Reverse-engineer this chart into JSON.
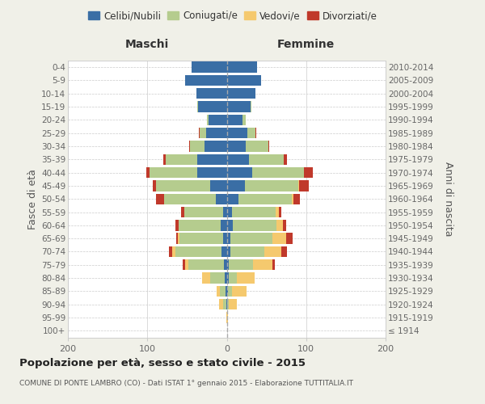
{
  "age_groups": [
    "100+",
    "95-99",
    "90-94",
    "85-89",
    "80-84",
    "75-79",
    "70-74",
    "65-69",
    "60-64",
    "55-59",
    "50-54",
    "45-49",
    "40-44",
    "35-39",
    "30-34",
    "25-29",
    "20-24",
    "15-19",
    "10-14",
    "5-9",
    "0-4"
  ],
  "birth_years": [
    "≤ 1914",
    "1915-1919",
    "1920-1924",
    "1925-1929",
    "1930-1934",
    "1935-1939",
    "1940-1944",
    "1945-1949",
    "1950-1954",
    "1955-1959",
    "1960-1964",
    "1965-1969",
    "1970-1974",
    "1975-1979",
    "1980-1984",
    "1985-1989",
    "1990-1994",
    "1995-1999",
    "2000-2004",
    "2005-2009",
    "2010-2014"
  ],
  "males_celibi": [
    0,
    0,
    1,
    2,
    3,
    4,
    7,
    5,
    8,
    5,
    14,
    21,
    37,
    37,
    28,
    26,
    23,
    36,
    38,
    52,
    44
  ],
  "males_coniugati": [
    0,
    0,
    4,
    7,
    18,
    44,
    58,
    55,
    53,
    48,
    65,
    68,
    60,
    40,
    18,
    8,
    2,
    1,
    0,
    0,
    0
  ],
  "males_vedovi": [
    0,
    1,
    5,
    4,
    10,
    4,
    4,
    2,
    0,
    0,
    0,
    0,
    0,
    0,
    0,
    0,
    0,
    0,
    0,
    0,
    0
  ],
  "males_divorziati": [
    0,
    0,
    0,
    0,
    0,
    3,
    4,
    2,
    4,
    4,
    10,
    4,
    4,
    3,
    1,
    1,
    0,
    0,
    0,
    0,
    0
  ],
  "females_nubili": [
    0,
    0,
    1,
    2,
    3,
    3,
    5,
    5,
    8,
    7,
    15,
    23,
    32,
    28,
    24,
    26,
    20,
    30,
    36,
    43,
    38
  ],
  "females_coniugate": [
    0,
    0,
    2,
    5,
    10,
    30,
    42,
    52,
    55,
    55,
    67,
    67,
    65,
    44,
    28,
    10,
    4,
    1,
    0,
    0,
    0
  ],
  "females_vedove": [
    0,
    2,
    10,
    18,
    22,
    24,
    22,
    18,
    8,
    4,
    2,
    1,
    0,
    0,
    0,
    0,
    0,
    0,
    0,
    0,
    0
  ],
  "females_divorziate": [
    0,
    0,
    0,
    0,
    0,
    4,
    7,
    8,
    4,
    3,
    8,
    12,
    11,
    4,
    1,
    1,
    0,
    0,
    0,
    0,
    0
  ],
  "color_celibi": "#3a6ea5",
  "color_coniugati": "#b5cc8e",
  "color_vedovi": "#f5c96e",
  "color_divorziati": "#c0392b",
  "xlim": 200,
  "title": "Popolazione per età, sesso e stato civile - 2015",
  "subtitle": "COMUNE DI PONTE LAMBRO (CO) - Dati ISTAT 1° gennaio 2015 - Elaborazione TUTTITALIA.IT",
  "ylabel_left": "Fasce di età",
  "ylabel_right": "Anni di nascita",
  "label_maschi": "Maschi",
  "label_femmine": "Femmine",
  "bg_color": "#f0f0e8",
  "plot_bg": "#ffffff",
  "grid_color": "#cccccc",
  "legend_labels": [
    "Celibi/Nubili",
    "Coniugati/e",
    "Vedovi/e",
    "Divorziati/e"
  ]
}
